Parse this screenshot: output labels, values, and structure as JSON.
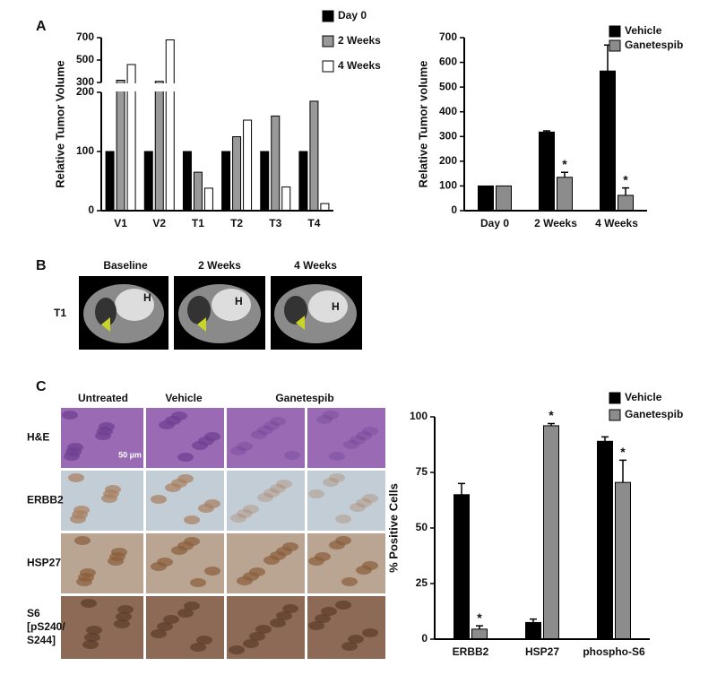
{
  "panel_labels": [
    "A",
    "B",
    "C"
  ],
  "chart_data": [
    {
      "type": "bar",
      "ylabel": "Relative Tumor Volume",
      "categories": [
        "V1",
        "V2",
        "T1",
        "T2",
        "T3",
        "T4"
      ],
      "series": [
        {
          "name": "Day 0",
          "color": "#000000",
          "values": [
            100,
            100,
            100,
            100,
            100,
            100
          ]
        },
        {
          "name": "2 Weeks",
          "color": "#999999",
          "values": [
            320,
            310,
            65,
            125,
            160,
            185
          ]
        },
        {
          "name": "4 Weeks",
          "color": "#ffffff",
          "values": [
            460,
            680,
            38,
            153,
            40,
            12
          ]
        }
      ],
      "ylim": [
        0,
        700
      ],
      "axis_break": [
        200,
        300
      ],
      "yticks": [
        0,
        100,
        200,
        300,
        500,
        700
      ]
    },
    {
      "type": "bar",
      "ylabel": "Relative Tumor volume",
      "categories": [
        "Day 0",
        "2 Weeks",
        "4 Weeks"
      ],
      "series": [
        {
          "name": "Vehicle",
          "color": "#000000",
          "values": [
            100,
            318,
            565
          ],
          "errors": [
            0,
            5,
            105
          ]
        },
        {
          "name": "Ganetespib",
          "color": "#8c8c8c",
          "values": [
            100,
            135,
            62
          ],
          "errors": [
            0,
            20,
            30
          ],
          "annotations": [
            null,
            "*",
            "*"
          ]
        }
      ],
      "ylim": [
        0,
        700
      ],
      "yticks": [
        0,
        100,
        200,
        300,
        400,
        500,
        600,
        700
      ]
    },
    {
      "type": "bar",
      "ylabel": "% Positive Cells",
      "categories": [
        "ERBB2",
        "HSP27",
        "phospho-S6"
      ],
      "series": [
        {
          "name": "Vehicle",
          "color": "#000000",
          "values": [
            65,
            7.5,
            89
          ],
          "errors": [
            5,
            1.5,
            2
          ]
        },
        {
          "name": "Ganetespib",
          "color": "#8c8c8c",
          "values": [
            4.5,
            96,
            70.5
          ],
          "errors": [
            1.5,
            1,
            10
          ],
          "annotations": [
            "*",
            "*",
            "*"
          ]
        }
      ],
      "ylim": [
        0,
        100
      ],
      "yticks": [
        0,
        25,
        50,
        75,
        100
      ]
    }
  ],
  "panel_b": {
    "columns": [
      "Baseline",
      "2 Weeks",
      "4 Weeks"
    ],
    "row_label": "T1",
    "marker": "H"
  },
  "panel_c": {
    "columns": [
      "Untreated",
      "Vehicle",
      "Ganetespib"
    ],
    "rows": [
      [
        "H&E"
      ],
      [
        "ERBB2"
      ],
      [
        "HSP27"
      ],
      [
        "S6",
        "[pS240/",
        "S244]"
      ]
    ],
    "scale_label": "50 µm"
  }
}
